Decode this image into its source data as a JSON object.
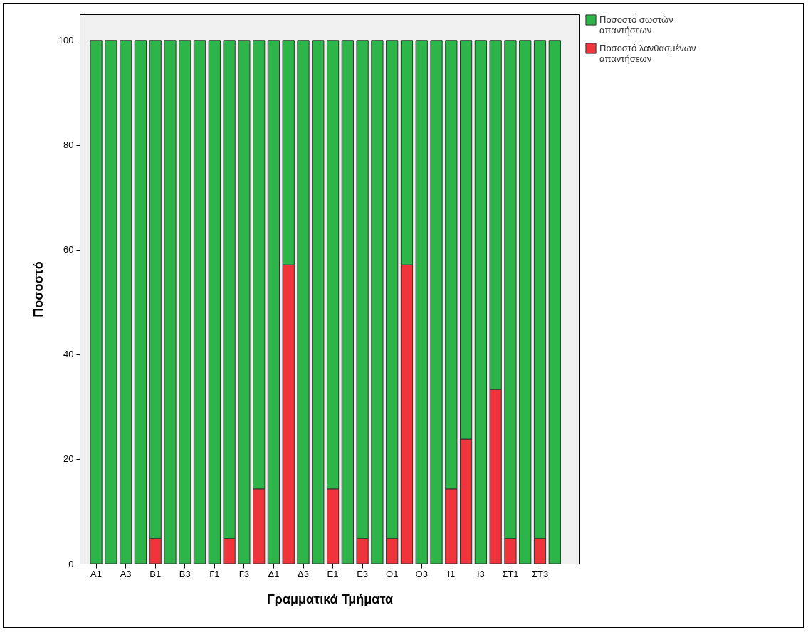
{
  "chart_data": {
    "type": "bar",
    "stacked": true,
    "xlabel": "Γραμματικά Τμήματα",
    "ylabel": "Ποσοστό",
    "categories": [
      "Α1",
      null,
      "Α3",
      null,
      "Β1",
      null,
      "Β3",
      null,
      "Γ1",
      null,
      "Γ3",
      null,
      "Δ1",
      null,
      "Δ3",
      null,
      "Ε1",
      null,
      "Ε3",
      null,
      "Θ1",
      null,
      "Θ3",
      null,
      "Ι1",
      null,
      "Ι3",
      null,
      "ΣΤ1",
      null,
      "ΣΤ3",
      null
    ],
    "series": [
      {
        "name": "Ποσοστό λανθασμένων απαντήσεων",
        "color": "#f0343c",
        "values": [
          0,
          0,
          0,
          0,
          4.8,
          0,
          0,
          0,
          0,
          4.8,
          0,
          14.3,
          0,
          57.1,
          0,
          0,
          14.3,
          0,
          4.8,
          0,
          4.8,
          57.1,
          0,
          0,
          14.3,
          23.8,
          0,
          33.3,
          4.8,
          0,
          4.8,
          0
        ]
      },
      {
        "name": "Ποσοστό σωστών απαντήσεων",
        "color": "#2eb54a",
        "values": [
          100,
          100,
          100,
          100,
          95.2,
          100,
          100,
          100,
          100,
          95.2,
          100,
          85.7,
          100,
          42.9,
          100,
          100,
          85.7,
          100,
          95.2,
          100,
          95.2,
          42.9,
          100,
          100,
          85.7,
          76.2,
          100,
          66.7,
          95.2,
          100,
          95.2,
          100
        ]
      }
    ],
    "ylim": [
      0,
      105
    ],
    "yticks": [
      0,
      20,
      40,
      60,
      80,
      100
    ],
    "grid": false,
    "legend": "top right"
  }
}
